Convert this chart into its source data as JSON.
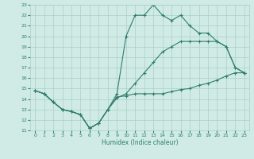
{
  "xlabel": "Humidex (Indice chaleur)",
  "x": [
    0,
    1,
    2,
    3,
    4,
    5,
    6,
    7,
    8,
    9,
    10,
    11,
    12,
    13,
    14,
    15,
    16,
    17,
    18,
    19,
    20,
    21,
    22,
    23
  ],
  "series1": [
    14.8,
    14.5,
    13.7,
    13.0,
    12.8,
    12.5,
    11.2,
    11.7,
    13.0,
    14.1,
    14.5,
    15.5,
    16.5,
    17.5,
    18.5,
    19.0,
    19.5,
    19.5,
    19.5,
    19.5,
    19.5,
    19.0,
    17.0,
    16.5
  ],
  "series2": [
    14.8,
    14.5,
    13.7,
    13.0,
    12.8,
    12.5,
    11.2,
    11.7,
    13.0,
    14.5,
    20.0,
    22.0,
    22.0,
    23.0,
    22.0,
    21.5,
    22.0,
    21.0,
    20.3,
    20.3,
    19.5,
    19.0,
    17.0,
    16.5
  ],
  "series3": [
    14.8,
    14.5,
    13.7,
    13.0,
    12.8,
    12.5,
    11.2,
    11.7,
    13.0,
    14.2,
    14.3,
    14.5,
    14.5,
    14.5,
    14.5,
    14.7,
    14.9,
    15.0,
    15.3,
    15.5,
    15.8,
    16.2,
    16.5,
    16.5
  ],
  "line_color": "#2E7D6E",
  "bg_color": "#D0EBE5",
  "grid_color": "#A8CFC5",
  "ylim": [
    11,
    23
  ],
  "xlim": [
    -0.5,
    23.5
  ],
  "yticks": [
    11,
    12,
    13,
    14,
    15,
    16,
    17,
    18,
    19,
    20,
    21,
    22,
    23
  ],
  "xticks": [
    0,
    1,
    2,
    3,
    4,
    5,
    6,
    7,
    8,
    9,
    10,
    11,
    12,
    13,
    14,
    15,
    16,
    17,
    18,
    19,
    20,
    21,
    22,
    23
  ]
}
